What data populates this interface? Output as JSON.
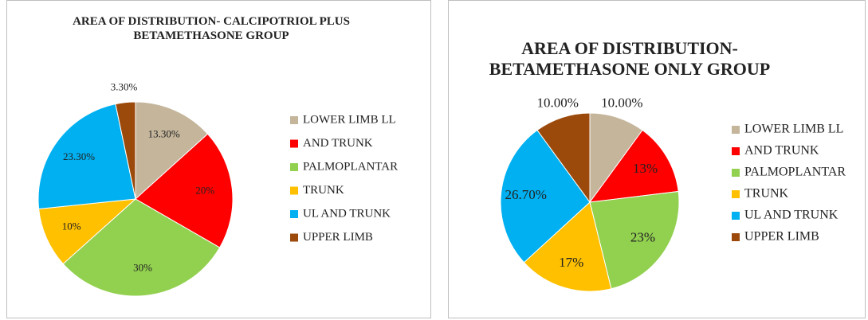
{
  "chart_data": [
    {
      "type": "pie",
      "title": "AREA OF DISTRIBUTION- CALCIPOTRIOL PLUS BETAMETHASONE GROUP",
      "categories": [
        "LOWER LIMB LL",
        "AND TRUNK",
        "PALMOPLANTAR",
        "TRUNK",
        "UL AND TRUNK",
        "UPPER LIMB"
      ],
      "values": [
        13.3,
        20,
        30,
        10,
        23.3,
        3.3
      ],
      "value_labels": [
        "13.30%",
        "20%",
        "30%",
        "10%",
        "23.30%",
        "3.30%"
      ],
      "colors": [
        "#c4b59b",
        "#ff0000",
        "#92d050",
        "#ffc000",
        "#00b0f0",
        "#9c4a0c"
      ],
      "legend": "right"
    },
    {
      "type": "pie",
      "title": "AREA OF DISTRIBUTION- BETAMETHASONE ONLY GROUP",
      "categories": [
        "LOWER LIMB LL",
        "AND TRUNK",
        "PALMOPLANTAR",
        "TRUNK",
        "UL AND TRUNK",
        "UPPER LIMB"
      ],
      "values": [
        10,
        13,
        23,
        17,
        26.7,
        10
      ],
      "value_labels": [
        "10.00%",
        "13%",
        "23%",
        "17%",
        "26.70%",
        "10.00%"
      ],
      "colors": [
        "#c4b59b",
        "#ff0000",
        "#92d050",
        "#ffc000",
        "#00b0f0",
        "#9c4a0c"
      ],
      "legend": "right"
    }
  ]
}
